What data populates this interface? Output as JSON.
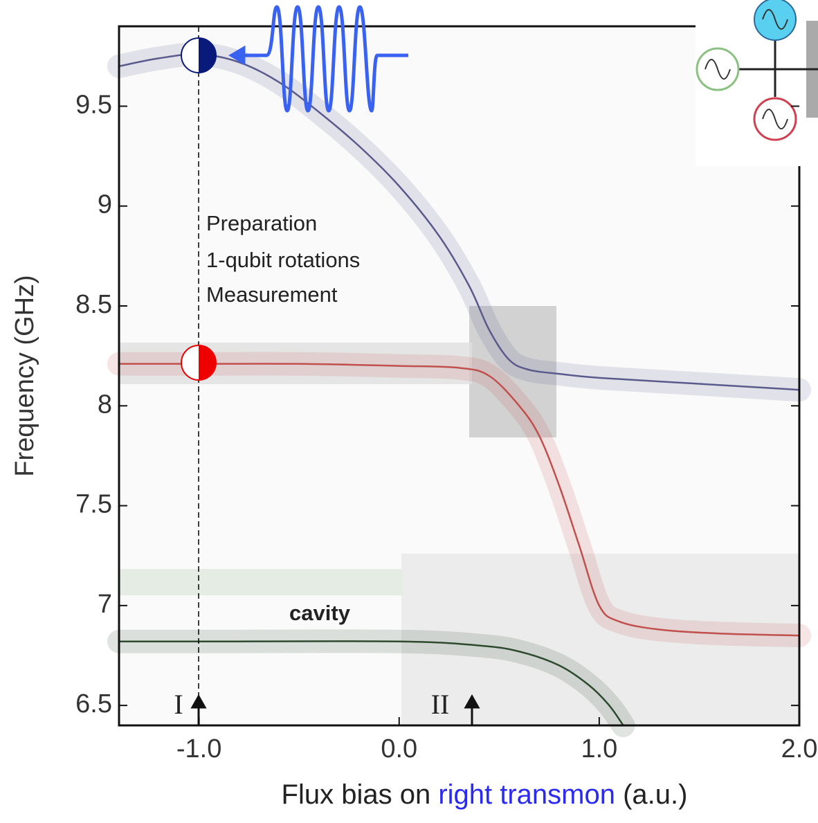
{
  "chart_data": {
    "type": "line",
    "xlabel": [
      "Flux bias on ",
      "right transmon",
      " (a.u.)"
    ],
    "ylabel": "Frequency (GHz)",
    "xlim": [
      -1.4,
      2.0
    ],
    "ylim": [
      6.4,
      9.9
    ],
    "xticks": [
      {
        "value": -1,
        "label": "-1.0"
      },
      {
        "value": 0,
        "label": "0.0"
      },
      {
        "value": 1,
        "label": "1.0"
      },
      {
        "value": 2,
        "label": "2.0"
      }
    ],
    "yticks": [
      6.5,
      7,
      7.5,
      8,
      8.5,
      9,
      9.5
    ],
    "annotations": [
      "Preparation",
      "1-qubit rotations",
      "Measurement",
      "cavity",
      "I",
      "II"
    ],
    "series": [
      {
        "color": "#5a5a8c",
        "x": [
          -1.4,
          -1.2,
          -1.0,
          -0.8,
          -0.6,
          -0.4,
          -0.2,
          0.0,
          0.2,
          0.35,
          0.45,
          0.55,
          0.65,
          0.8,
          1.0,
          1.5,
          2.0
        ],
        "values": [
          9.7,
          9.74,
          9.76,
          9.72,
          9.62,
          9.47,
          9.3,
          9.1,
          8.85,
          8.6,
          8.38,
          8.23,
          8.18,
          8.16,
          8.14,
          8.11,
          8.08
        ]
      },
      {
        "color": "#c0504d",
        "x": [
          -1.4,
          -1.0,
          -0.5,
          0.0,
          0.3,
          0.45,
          0.6,
          0.7,
          0.8,
          0.9,
          1.0,
          1.1,
          1.3,
          1.6,
          2.0
        ],
        "values": [
          8.21,
          8.21,
          8.21,
          8.2,
          8.19,
          8.15,
          8.0,
          7.85,
          7.6,
          7.3,
          7.0,
          6.92,
          6.88,
          6.86,
          6.85
        ]
      },
      {
        "color": "#2e4a2e",
        "x": [
          -1.4,
          -1.0,
          0.0,
          0.4,
          0.6,
          0.8,
          0.95,
          1.05,
          1.12
        ],
        "values": [
          6.82,
          6.82,
          6.82,
          6.8,
          6.77,
          6.7,
          6.6,
          6.5,
          6.4
        ]
      }
    ]
  }
}
